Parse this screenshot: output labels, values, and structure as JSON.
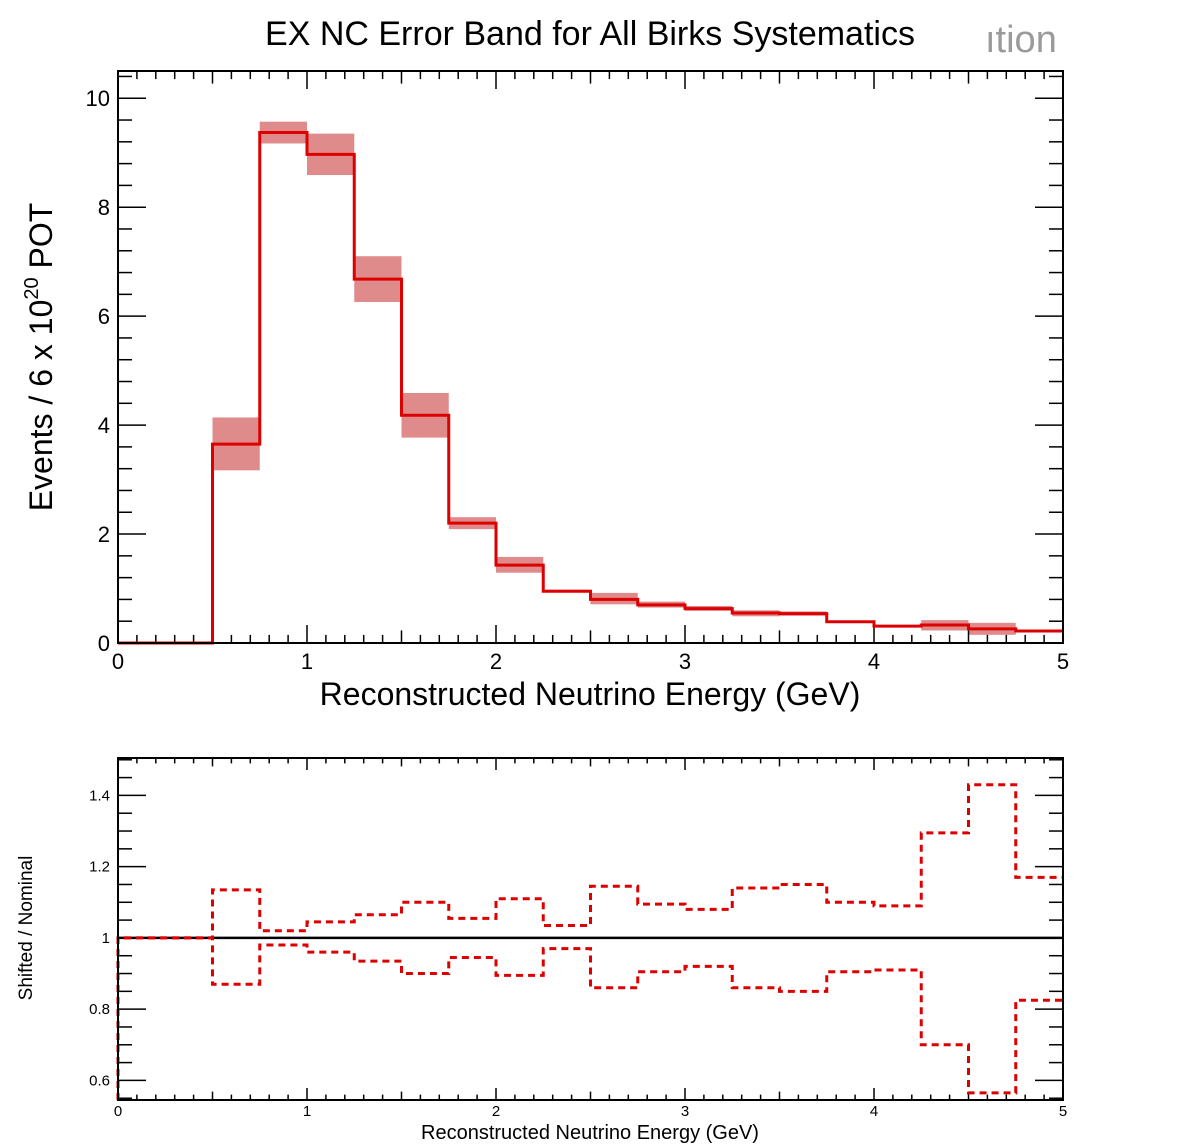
{
  "chart_data": [
    {
      "type": "histogram",
      "title": "EX NC Error Band for All Birks Systematics",
      "watermark": "ıtion",
      "xlabel": "Reconstructed Neutrino Energy (GeV)",
      "ylabel_prefix": "Events / 6 x 10",
      "ylabel_sup": "20",
      "ylabel_suffix": " POT",
      "xlim": [
        0,
        5
      ],
      "ylim": [
        0,
        10.5
      ],
      "xticks": [
        "0",
        "1",
        "2",
        "3",
        "4",
        "5"
      ],
      "yticks": [
        "0",
        "2",
        "4",
        "6",
        "8",
        "10"
      ],
      "bin_edges": [
        0,
        0.25,
        0.5,
        0.75,
        1.0,
        1.25,
        1.5,
        1.75,
        2.0,
        2.25,
        2.5,
        2.75,
        3.0,
        3.25,
        3.5,
        3.75,
        4.0,
        4.25,
        4.5,
        4.75,
        5.0
      ],
      "series": [
        {
          "name": "Nominal",
          "color": "#dd0000",
          "values": [
            0.0,
            0.0,
            3.65,
            9.37,
            8.97,
            6.68,
            4.18,
            2.2,
            1.43,
            0.95,
            0.8,
            0.7,
            0.63,
            0.55,
            0.54,
            0.39,
            0.31,
            0.33,
            0.26,
            0.22
          ]
        }
      ],
      "error_band": {
        "color": "#e08b8b",
        "low": [
          0.0,
          0.0,
          3.17,
          9.17,
          8.59,
          6.26,
          3.77,
          2.09,
          1.29,
          0.93,
          0.71,
          0.65,
          0.59,
          0.49,
          0.5,
          0.39,
          0.31,
          0.23,
          0.15,
          0.22
        ],
        "high": [
          0.0,
          0.0,
          4.14,
          9.57,
          9.35,
          7.1,
          4.59,
          2.31,
          1.58,
          0.98,
          0.92,
          0.76,
          0.68,
          0.6,
          0.58,
          0.39,
          0.31,
          0.42,
          0.37,
          0.22
        ]
      }
    },
    {
      "type": "line",
      "xlabel": "Reconstructed Neutrino Energy (GeV)",
      "ylabel": "Shifted / Nominal",
      "xlim": [
        0,
        5
      ],
      "ylim": [
        0.545,
        1.505
      ],
      "xticks": [
        "0",
        "1",
        "2",
        "3",
        "4",
        "5"
      ],
      "yticks": [
        "0.6",
        "0.8",
        "1",
        "1.2",
        "1.4"
      ],
      "reference_line": 1,
      "bin_edges": [
        0,
        0.25,
        0.5,
        0.75,
        1.0,
        1.25,
        1.5,
        1.75,
        2.0,
        2.25,
        2.5,
        2.75,
        3.0,
        3.25,
        3.5,
        3.75,
        4.0,
        4.25,
        4.5,
        4.75,
        5.0
      ],
      "series": [
        {
          "name": "shift-up",
          "color": "#dd0000",
          "style": "dashed",
          "values": [
            1.0,
            1.0,
            1.135,
            1.02,
            1.045,
            1.065,
            1.1,
            1.055,
            1.11,
            1.035,
            1.145,
            1.095,
            1.08,
            1.14,
            1.15,
            1.1,
            1.09,
            1.295,
            1.43,
            1.17
          ]
        },
        {
          "name": "shift-down",
          "color": "#dd0000",
          "style": "dashed",
          "values": [
            1.0,
            1.0,
            0.87,
            0.98,
            0.96,
            0.935,
            0.9,
            0.945,
            0.895,
            0.97,
            0.86,
            0.905,
            0.92,
            0.86,
            0.85,
            0.905,
            0.91,
            0.7,
            0.565,
            0.825
          ]
        }
      ]
    }
  ]
}
